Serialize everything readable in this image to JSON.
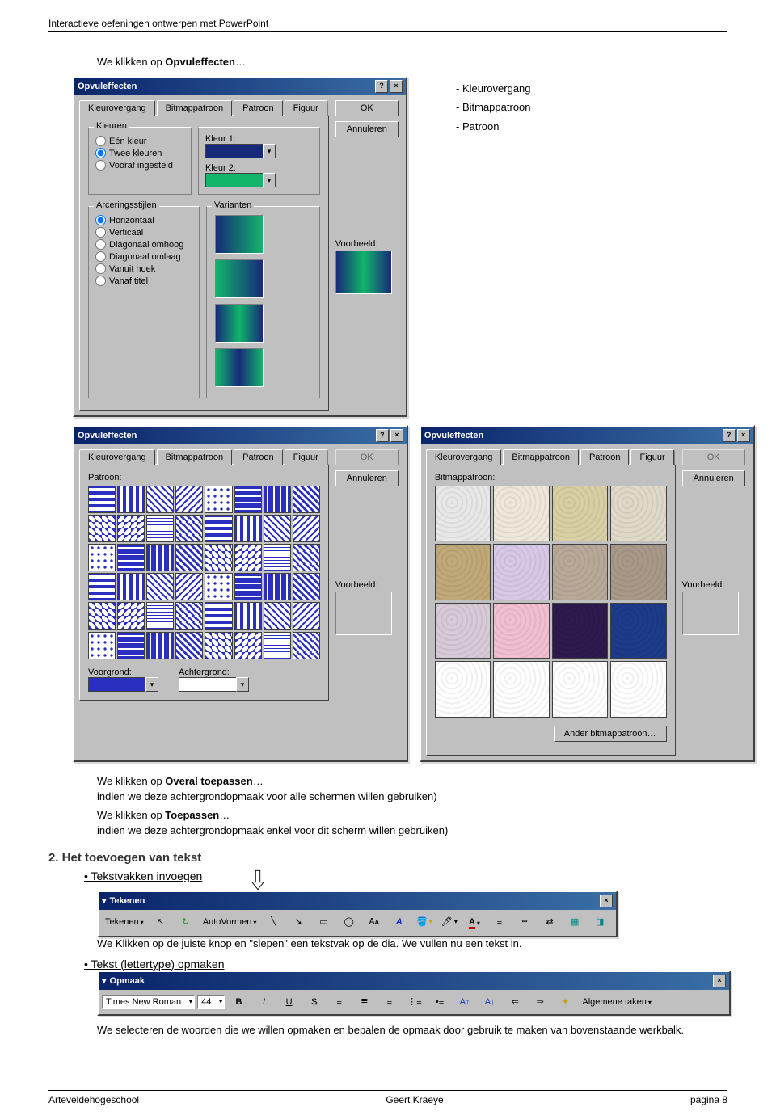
{
  "header": "Interactieve oefeningen ontwerpen met PowerPoint",
  "intro_line_pre": "We klikken op ",
  "intro_bold": "Opvuleffecten",
  "intro_line_post": "…",
  "option_list": [
    "Kleurovergang",
    "Bitmappatroon",
    "Patroon"
  ],
  "dlg1": {
    "title": "Opvuleffecten",
    "tabs": [
      "Kleurovergang",
      "Bitmappatroon",
      "Patroon",
      "Figuur"
    ],
    "ok": "OK",
    "cancel": "Annuleren",
    "group_kleuren": "Kleuren",
    "radios_kleuren": [
      "Eén kleur",
      "Twee kleuren",
      "Vooraf ingesteld"
    ],
    "kleur1_label": "Kleur 1:",
    "kleur2_label": "Kleur 2:",
    "kleur1_color": "#172a7a",
    "kleur2_color": "#12b56b",
    "group_arcer": "Arceringsstijlen",
    "radios_arcer": [
      "Horizontaal",
      "Verticaal",
      "Diagonaal omhoog",
      "Diagonaal omlaag",
      "Vanuit hoek",
      "Vanaf titel"
    ],
    "group_variant": "Varianten",
    "voorbeeld": "Voorbeeld:",
    "gradients": [
      "linear-gradient(90deg,#172a7a,#12b56b)",
      "linear-gradient(270deg,#172a7a,#12b56b)",
      "linear-gradient(90deg,#172a7a,#12b56b,#172a7a)",
      "linear-gradient(90deg,#12b56b,#172a7a,#12b56b)"
    ],
    "preview_gradient": "linear-gradient(90deg,#172a7a,#12b56b,#172a7a)"
  },
  "dlg_patroon": {
    "title": "Opvuleffecten",
    "tabs": [
      "Kleurovergang",
      "Bitmappatroon",
      "Patroon",
      "Figuur"
    ],
    "label": "Patroon:",
    "ok": "OK",
    "cancel": "Annuleren",
    "voorgrond": "Voorgrond:",
    "achtergrond": "Achtergrond:",
    "fg_color": "#2a2fc0",
    "bg_color": "#ffffff",
    "voorbeeld": "Voorbeeld:"
  },
  "dlg_bitmap": {
    "title": "Opvuleffecten",
    "tabs": [
      "Kleurovergang",
      "Bitmappatroon",
      "Patroon",
      "Figuur"
    ],
    "label": "Bitmappatroon:",
    "ok": "OK",
    "cancel": "Annuleren",
    "ander": "Ander bitmappatroon…",
    "voorbeeld": "Voorbeeld:",
    "texture_colors": [
      "#e8e8e8",
      "#efe7d9",
      "#d9cfa4",
      "#e0d8c8",
      "#bfa978",
      "#d8c8e8",
      "#b8a898",
      "#a89888",
      "#d8cad8",
      "#f1bfd1",
      "#2e1a4d",
      "#1e3a8a",
      "#ffffff",
      "#ffffff",
      "#ffffff",
      "#ffffff"
    ]
  },
  "para2_pre": "We klikken op ",
  "para2_bold": "Overal toepassen",
  "para2_post": "…",
  "para2b": "indien we deze achtergrondopmaak voor alle schermen willen gebruiken)",
  "para3_pre": "We klikken op ",
  "para3_bold": "Toepassen",
  "para3_post": "…",
  "para3b": "indien we deze achtergrondopmaak enkel voor dit scherm willen gebruiken)",
  "h2": "2. Het toevoegen van tekst",
  "bullet1": "Tekstvakken invoegen",
  "tekenen": {
    "title": "Tekenen",
    "menu_teken": "Tekenen",
    "auto": "AutoVormen"
  },
  "para4": "We Klikken op de juiste knop en \"slepen\" een tekstvak op de dia. We vullen nu een tekst in.",
  "bullet2": "Tekst (lettertype) opmaken",
  "opmaak": {
    "title": "Opmaak",
    "font": "Times New Roman",
    "size": "44",
    "taken": "Algemene taken"
  },
  "para5": "We selecteren de woorden die we willen opmaken en bepalen de opmaak door gebruik te maken van bovenstaande werkbalk.",
  "footer": {
    "left": "Arteveldehogeschool",
    "center": "Geert Kraeye",
    "right": "pagina 8"
  }
}
